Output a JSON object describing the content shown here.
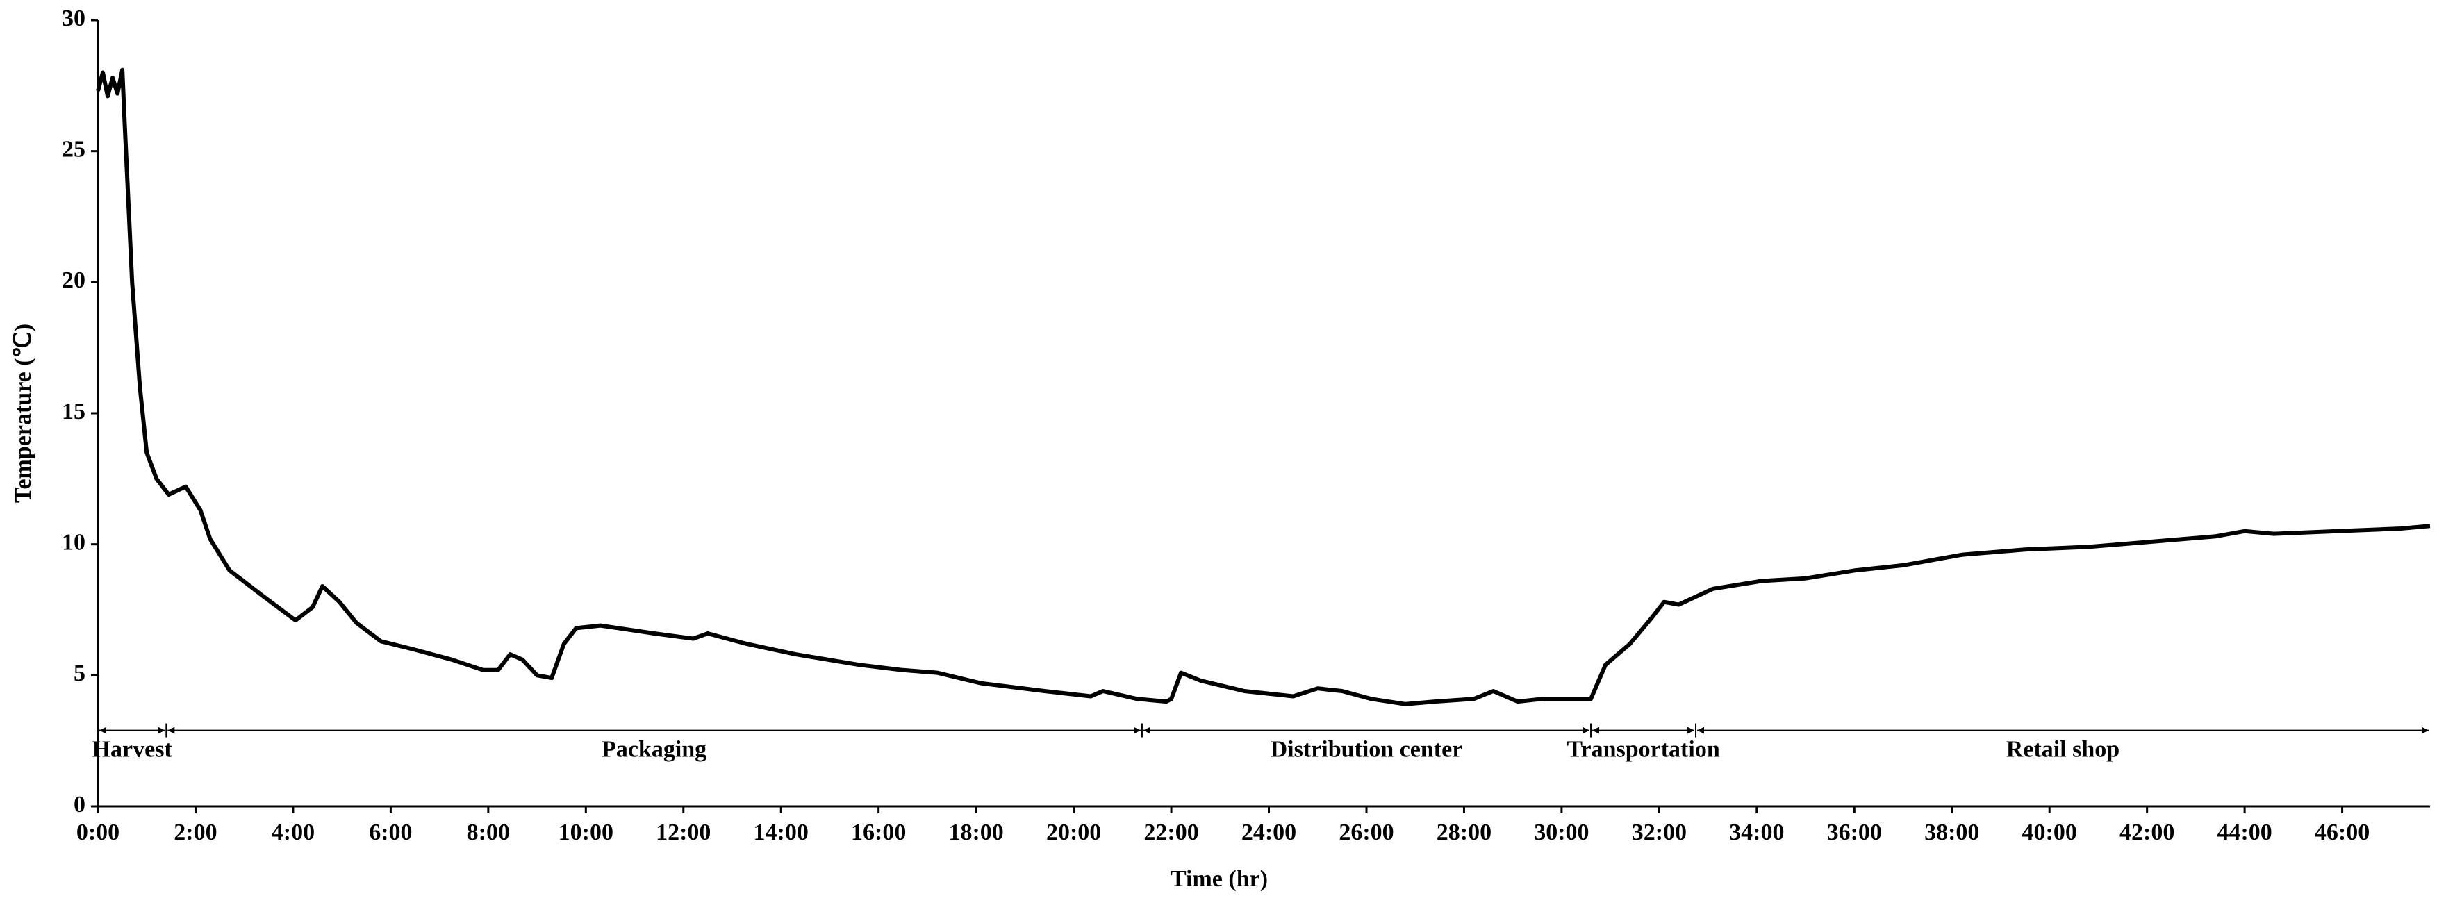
{
  "chart_data": {
    "type": "line",
    "x_label": "Time (hr)",
    "y_label": "Temperature (℃)",
    "x": [
      0,
      0.1,
      0.2,
      0.3,
      0.4,
      0.5,
      0.55,
      0.7,
      0.86,
      1.0,
      1.2,
      1.45,
      1.8,
      2.1,
      2.3,
      2.7,
      3.4,
      4.05,
      4.4,
      4.6,
      4.95,
      5.3,
      5.8,
      6.45,
      7.25,
      7.9,
      8.2,
      8.45,
      8.7,
      9.0,
      9.3,
      9.55,
      9.8,
      10.3,
      11.4,
      12.2,
      12.5,
      13.3,
      14.3,
      15.6,
      16.5,
      17.2,
      18.1,
      19.4,
      20.35,
      20.6,
      21.3,
      21.9,
      22.0,
      22.2,
      22.6,
      23.5,
      24.5,
      25.0,
      25.5,
      26.1,
      26.8,
      27.4,
      28.2,
      28.6,
      29.1,
      29.6,
      30.6,
      30.9,
      31.4,
      31.85,
      32.1,
      32.4,
      33.1,
      34.1,
      35.0,
      36.0,
      37.0,
      38.2,
      39.5,
      40.8,
      42.1,
      43.4,
      44.0,
      44.6,
      45.9,
      47.2,
      47.8
    ],
    "series": [
      {
        "name": "Temperature",
        "color": "#000000",
        "values": [
          27.3,
          28.0,
          27.1,
          27.8,
          27.2,
          28.1,
          26.0,
          20.0,
          16.0,
          13.5,
          12.5,
          11.9,
          12.2,
          11.3,
          10.2,
          9.0,
          8.0,
          7.1,
          7.6,
          8.4,
          7.8,
          7.0,
          6.3,
          6.0,
          5.6,
          5.2,
          5.2,
          5.8,
          5.6,
          5.0,
          4.9,
          6.2,
          6.8,
          6.9,
          6.6,
          6.4,
          6.6,
          6.2,
          5.8,
          5.4,
          5.2,
          5.1,
          4.7,
          4.4,
          4.2,
          4.4,
          4.1,
          4.0,
          4.1,
          5.1,
          4.8,
          4.4,
          4.2,
          4.5,
          4.4,
          4.1,
          3.9,
          4.0,
          4.1,
          4.4,
          4.0,
          4.1,
          4.1,
          5.4,
          6.2,
          7.2,
          7.8,
          7.7,
          8.3,
          8.6,
          8.7,
          9.0,
          9.2,
          9.6,
          9.8,
          9.9,
          10.1,
          10.3,
          10.5,
          10.4,
          10.5,
          10.6,
          10.7
        ]
      }
    ],
    "xlim": [
      0,
      47.8
    ],
    "ylim": [
      0,
      30
    ],
    "xticks": [
      {
        "value": 0,
        "label": "0:00"
      },
      {
        "value": 2,
        "label": "2:00"
      },
      {
        "value": 4,
        "label": "4:00"
      },
      {
        "value": 6,
        "label": "6:00"
      },
      {
        "value": 8,
        "label": "8:00"
      },
      {
        "value": 10,
        "label": "10:00"
      },
      {
        "value": 12,
        "label": "12:00"
      },
      {
        "value": 14,
        "label": "14:00"
      },
      {
        "value": 16,
        "label": "16:00"
      },
      {
        "value": 18,
        "label": "18:00"
      },
      {
        "value": 20,
        "label": "20:00"
      },
      {
        "value": 22,
        "label": "22:00"
      },
      {
        "value": 24,
        "label": "24:00"
      },
      {
        "value": 26,
        "label": "26:00"
      },
      {
        "value": 28,
        "label": "28:00"
      },
      {
        "value": 30,
        "label": "30:00"
      },
      {
        "value": 32,
        "label": "32:00"
      },
      {
        "value": 34,
        "label": "34:00"
      },
      {
        "value": 36,
        "label": "36:00"
      },
      {
        "value": 38,
        "label": "38:00"
      },
      {
        "value": 40,
        "label": "40:00"
      },
      {
        "value": 42,
        "label": "42:00"
      },
      {
        "value": 44,
        "label": "44:00"
      },
      {
        "value": 46,
        "label": "46:00"
      }
    ],
    "yticks": [
      0,
      5,
      10,
      15,
      20,
      25,
      30
    ],
    "phases": [
      {
        "label": "Harvest",
        "start": 0,
        "end": 1.4
      },
      {
        "label": "Packaging",
        "start": 1.4,
        "end": 21.4
      },
      {
        "label": "Distribution center",
        "start": 21.4,
        "end": 30.6
      },
      {
        "label": "Transportation",
        "start": 30.6,
        "end": 32.75
      },
      {
        "label": "Retail shop",
        "start": 32.75,
        "end": 47.8
      }
    ],
    "phase_level": 2.9,
    "grid": false
  }
}
